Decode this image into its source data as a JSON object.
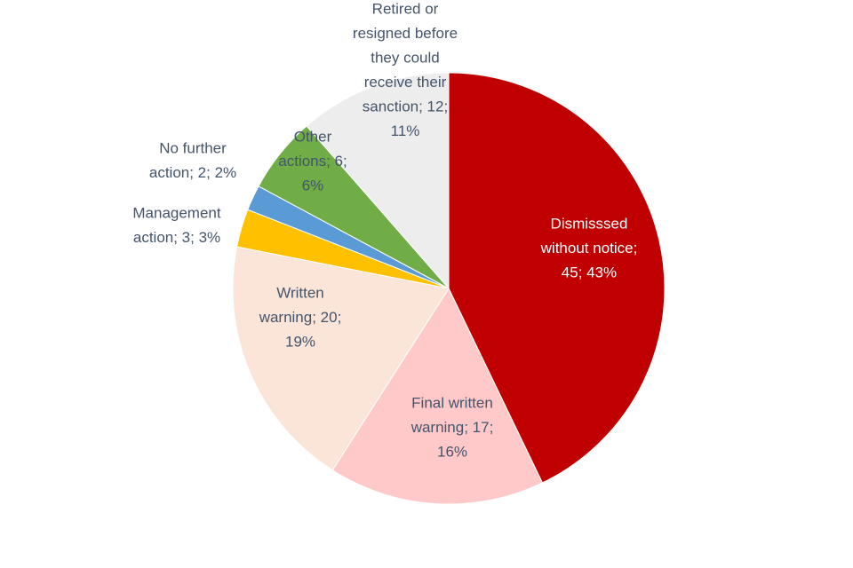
{
  "chart_data": {
    "type": "pie",
    "title": "",
    "start_angle_deg": 0,
    "direction": "clockwise",
    "slices": [
      {
        "name": "Dismisssed without notice",
        "value": 45,
        "percent": 43,
        "color": "#C00000",
        "label_lines": [
          "Dismisssed",
          "without notice;",
          "45; 43%"
        ],
        "label_color": "#ffffff"
      },
      {
        "name": "Final written warning",
        "value": 17,
        "percent": 16,
        "color": "#FFC9C9",
        "label_lines": [
          "Final written",
          "warning; 17;",
          "16%"
        ],
        "label_color": "#44546A"
      },
      {
        "name": "Written warning",
        "value": 20,
        "percent": 19,
        "color": "#FBE5D9",
        "label_lines": [
          "Written",
          "warning; 20;",
          "19%"
        ],
        "label_color": "#44546A"
      },
      {
        "name": "Management action",
        "value": 3,
        "percent": 3,
        "color": "#FFC000",
        "label_lines": [
          "Management",
          "action; 3; 3%"
        ],
        "label_color": "#44546A"
      },
      {
        "name": "No further action",
        "value": 2,
        "percent": 2,
        "color": "#5B9BD5",
        "label_lines": [
          "No further",
          "action; 2; 2%"
        ],
        "label_color": "#44546A"
      },
      {
        "name": "Other actions",
        "value": 6,
        "percent": 6,
        "color": "#70AD47",
        "label_lines": [
          "Other",
          "actions; 6;",
          "6%"
        ],
        "label_color": "#44546A"
      },
      {
        "name": "Retired or resigned before they could receive their sanction",
        "value": 12,
        "percent": 11,
        "color": "#EDEDED",
        "label_lines": [
          "Retired or",
          "resigned before",
          "they could",
          "receive their",
          "sanction; 12;",
          "11%"
        ],
        "label_color": "#44546A"
      }
    ]
  }
}
